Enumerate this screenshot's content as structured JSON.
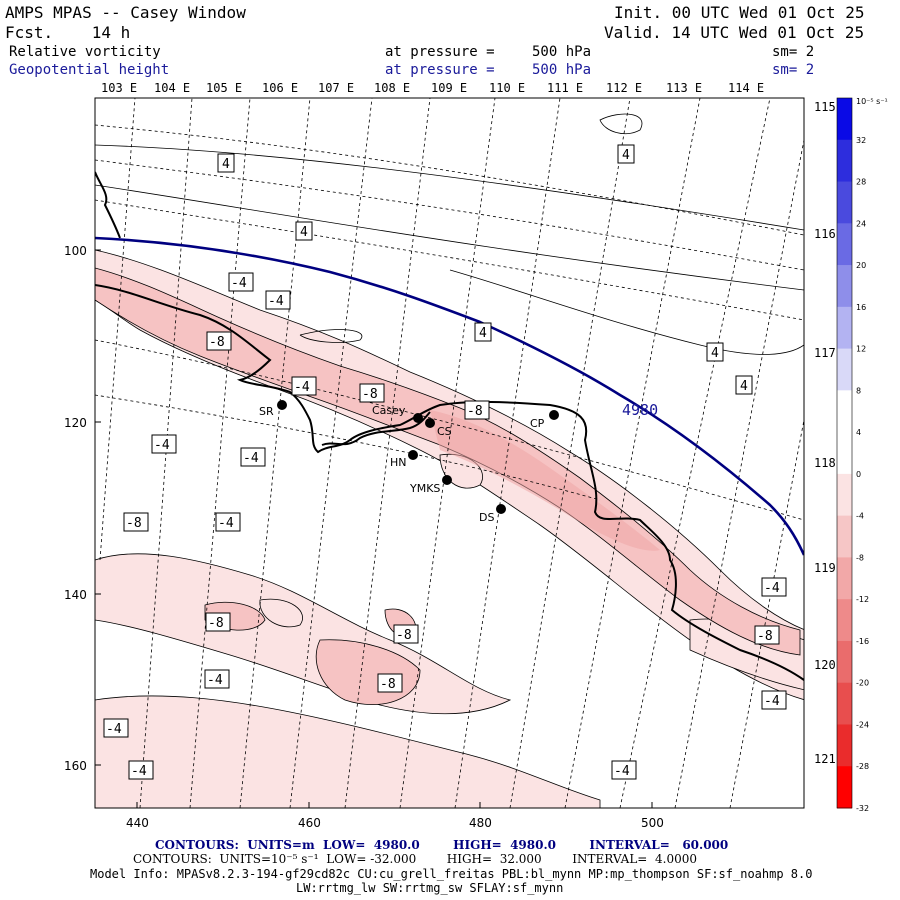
{
  "header": {
    "title": "AMPS MPAS -- Casey Window",
    "forecast": "Fcst.    14 h",
    "init": "Init. 00 UTC Wed 01 Oct 25",
    "valid": "Valid. 14 UTC Wed 01 Oct 25"
  },
  "fields": [
    {
      "name": "Relative vorticity",
      "level_label": "at pressure =",
      "level": "500 hPa",
      "sm": "sm= 2"
    },
    {
      "name": "Geopotential height",
      "level_label": "at pressure =",
      "level": "500 hPa",
      "sm": "sm= 2"
    }
  ],
  "colors": {
    "geopotential": "#000080",
    "coast": "#000000",
    "shade_light": "#fbe3e3",
    "shade_mid": "#f6c3c3",
    "shade_dark": "#efa5a5"
  },
  "lon_top": [
    "103 E",
    "104 E",
    "105 E",
    "106 E",
    "107 E",
    "108 E",
    "109 E",
    "110 E",
    "111 E",
    "112 E",
    "113 E",
    "114 E"
  ],
  "lon_right": [
    "115 E",
    "116 E",
    "117 E",
    "118 E",
    "119 E",
    "120 E",
    "121 E"
  ],
  "y_ticks": [
    "100",
    "120",
    "140",
    "160"
  ],
  "x_ticks": [
    "440",
    "460",
    "480",
    "500"
  ],
  "colorbar": {
    "unit": "10⁻⁵ s⁻¹",
    "levels": [
      "32",
      "28",
      "24",
      "20",
      "16",
      "12",
      "8",
      "4",
      "0",
      "-4",
      "-8",
      "-12",
      "-16",
      "-20",
      "-24",
      "-28",
      "-32"
    ],
    "colors": [
      "#0a0ae6",
      "#2d2ddd",
      "#4a4ade",
      "#6a6ae4",
      "#8e8eea",
      "#b3b3f2",
      "#d9d9f8",
      "#ffffff",
      "#ffffff",
      "#fbe3e3",
      "#f6c6c6",
      "#f2a8a8",
      "#ee8a8a",
      "#ea6c6c",
      "#e84e4e",
      "#ea2c2c",
      "#ff0000"
    ]
  },
  "stations": [
    {
      "id": "SR"
    },
    {
      "id": "Casey"
    },
    {
      "id": "CS"
    },
    {
      "id": "CP"
    },
    {
      "id": "HN"
    },
    {
      "id": "YMKS"
    },
    {
      "id": "DS"
    }
  ],
  "contour_labels": {
    "vorticity": [
      "4",
      "4",
      "4",
      "4",
      "4",
      "4",
      "-4",
      "-4",
      "-8",
      "-4",
      "-8",
      "-8",
      "-4",
      "-4",
      "-4",
      "-8",
      "-4",
      "-8",
      "-8",
      "-4",
      "-8",
      "-4",
      "-4",
      "-4",
      "-4",
      "-4",
      "-8"
    ],
    "geopotential": "4980"
  },
  "footer": {
    "line1": "CONTOURS:  UNITS=m  LOW=  4980.0        HIGH=  4980.0        INTERVAL=   60.000",
    "line2": "CONTOURS:  UNITS=10⁻⁵ s⁻¹  LOW= -32.000        HIGH=  32.000        INTERVAL=  4.0000",
    "line3": "Model Info: MPASv8.2.3-194-gf29cd82c CU:cu_grell_freitas PBL:bl_mynn MP:mp_thompson SF:sf_noahmp 8.0",
    "line4": "LW:rrtmg_lw SW:rrtmg_sw SFLAY:sf_mynn"
  }
}
